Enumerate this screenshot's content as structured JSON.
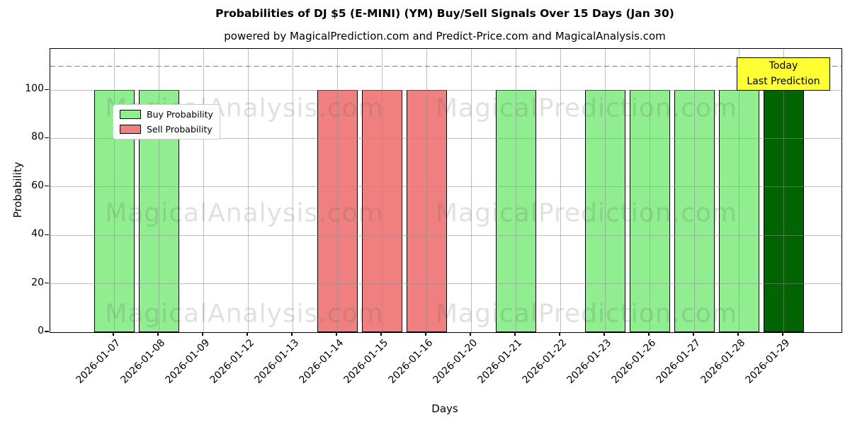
{
  "header": {
    "title": "Probabilities of DJ $5 (E-MINI) (YM) Buy/Sell Signals Over 15 Days (Jan 30)",
    "subtitle": "powered by MagicalPrediction.com and Predict-Price.com and MagicalAnalysis.com"
  },
  "legend": {
    "items": [
      {
        "label": "Buy Probability",
        "color_key": "buy"
      },
      {
        "label": "Sell Probability",
        "color_key": "sell"
      }
    ]
  },
  "annotation": {
    "line1": "Today",
    "line2": "Last Prediction"
  },
  "axes": {
    "x_label": "Days",
    "y_label": "Probability"
  },
  "watermarks": {
    "left_text": "MagicalAnalysis.com",
    "right_text": "MagicalPrediction.com"
  },
  "colors": {
    "buy": "#90ee90",
    "sell": "#f08080",
    "today": "#006400",
    "annotation_bg": "#ffff33",
    "grid": "rgba(140,140,140,0.55)",
    "bar_edge": "#000000",
    "dashed_guideline": "#808080"
  },
  "chart_data": {
    "type": "bar",
    "title": "Probabilities of DJ $5 (E-MINI) (YM) Buy/Sell Signals Over 15 Days (Jan 30)",
    "subtitle": "powered by MagicalPrediction.com and Predict-Price.com and MagicalAnalysis.com",
    "xlabel": "Days",
    "ylabel": "Probability",
    "ylim": [
      0,
      117
    ],
    "y_ticks": [
      0,
      20,
      40,
      60,
      80,
      100
    ],
    "grid": true,
    "legend_position": "upper left",
    "dashed_guideline_y": 110,
    "categories": [
      "2026-01-07",
      "2026-01-08",
      "2026-01-09",
      "2026-01-12",
      "2026-01-13",
      "2026-01-14",
      "2026-01-15",
      "2026-01-16",
      "2026-01-20",
      "2026-01-21",
      "2026-01-22",
      "2026-01-23",
      "2026-01-26",
      "2026-01-27",
      "2026-01-28",
      "2026-01-29"
    ],
    "series": [
      {
        "name": "Buy Probability",
        "color": "#90ee90",
        "values": [
          100,
          100,
          0,
          0,
          0,
          0,
          0,
          0,
          0,
          100,
          0,
          100,
          100,
          100,
          100,
          0
        ]
      },
      {
        "name": "Sell Probability",
        "color": "#f08080",
        "values": [
          0,
          0,
          0,
          0,
          0,
          100,
          100,
          100,
          0,
          0,
          0,
          0,
          0,
          0,
          0,
          0
        ]
      },
      {
        "name": "Today Last Prediction",
        "color": "#006400",
        "values": [
          0,
          0,
          0,
          0,
          0,
          0,
          0,
          0,
          0,
          0,
          0,
          0,
          0,
          0,
          0,
          100
        ]
      }
    ]
  }
}
